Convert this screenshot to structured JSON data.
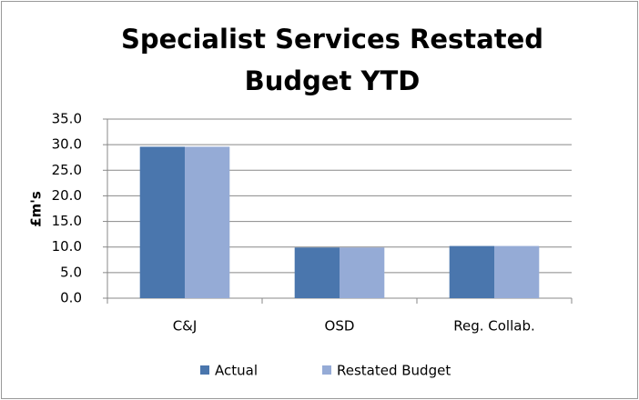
{
  "chart_data": {
    "type": "bar",
    "title": "Specialist Services Restated Budget YTD",
    "y_label": "£m's",
    "categories": [
      "C&J",
      "OSD",
      "Reg. Collab."
    ],
    "series": [
      {
        "name": "Actual",
        "color": "#4a76ad",
        "values": [
          29.6,
          9.9,
          10.2
        ]
      },
      {
        "name": "Restated Budget",
        "color": "#95abd6",
        "values": [
          29.6,
          9.9,
          10.2
        ]
      }
    ],
    "ylim": [
      0,
      35
    ],
    "yticks": [
      {
        "value": 0,
        "label": "0.0"
      },
      {
        "value": 5,
        "label": "5.0"
      },
      {
        "value": 10,
        "label": "10.0"
      },
      {
        "value": 15,
        "label": "15.0"
      },
      {
        "value": 20,
        "label": "20.0"
      },
      {
        "value": 25,
        "label": "25.0"
      },
      {
        "value": 30,
        "label": "30.0"
      },
      {
        "value": 35,
        "label": "35.0"
      }
    ],
    "grid": true,
    "legend": "bottom"
  }
}
